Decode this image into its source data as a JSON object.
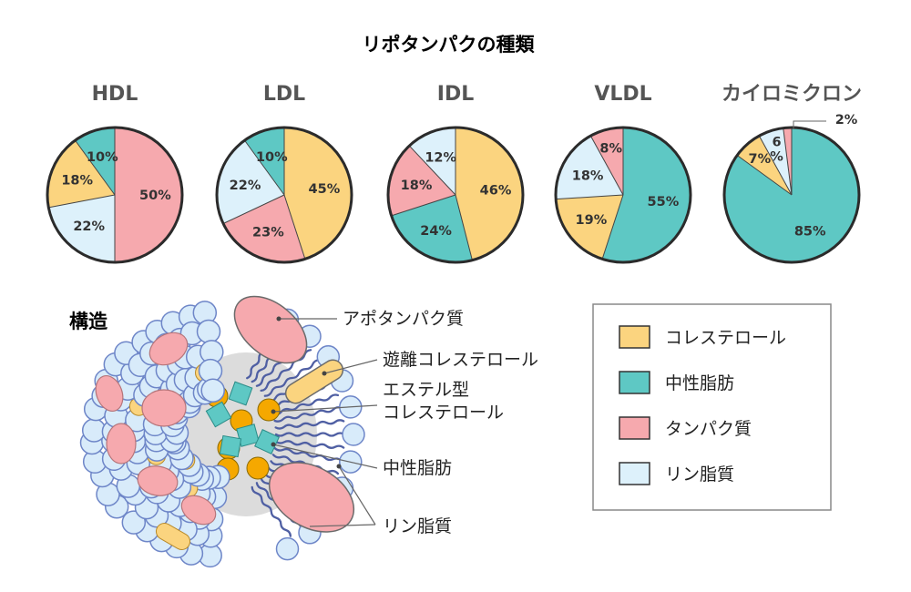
{
  "page_title": "リポタンパクの種類",
  "colors": {
    "cholesterol": "#fbd47f",
    "triglyceride": "#5ec8c4",
    "protein": "#f6a9ae",
    "phospholipid": "#ddf1fb",
    "outline": "#2b2b2b",
    "core_sphere": "#f5a800",
    "sphere_blue": "#d8ebfa",
    "sphere_stroke": "#6e86c8",
    "tail": "#4f5fa3"
  },
  "chart_data": [
    {
      "type": "pie",
      "title": "HDL",
      "categories": [
        "タンパク質",
        "リン脂質",
        "コレステロール",
        "中性脂肪"
      ],
      "values": [
        50,
        22,
        18,
        10
      ],
      "labels": [
        "50%",
        "22%",
        "18%",
        "10%"
      ],
      "color_keys": [
        "protein",
        "phospholipid",
        "cholesterol",
        "triglyceride"
      ]
    },
    {
      "type": "pie",
      "title": "LDL",
      "categories": [
        "コレステロール",
        "タンパク質",
        "リン脂質",
        "中性脂肪"
      ],
      "values": [
        45,
        23,
        22,
        10
      ],
      "labels": [
        "45%",
        "23%",
        "22%",
        "10%"
      ],
      "color_keys": [
        "cholesterol",
        "protein",
        "phospholipid",
        "triglyceride"
      ]
    },
    {
      "type": "pie",
      "title": "IDL",
      "categories": [
        "コレステロール",
        "中性脂肪",
        "タンパク質",
        "リン脂質"
      ],
      "values": [
        46,
        24,
        18,
        12
      ],
      "labels": [
        "46%",
        "24%",
        "18%",
        "12%"
      ],
      "color_keys": [
        "cholesterol",
        "triglyceride",
        "protein",
        "phospholipid"
      ]
    },
    {
      "type": "pie",
      "title": "VLDL",
      "categories": [
        "中性脂肪",
        "コレステロール",
        "リン脂質",
        "タンパク質"
      ],
      "values": [
        55,
        19,
        18,
        8
      ],
      "labels": [
        "55%",
        "19%",
        "18%",
        "8%"
      ],
      "color_keys": [
        "triglyceride",
        "cholesterol",
        "phospholipid",
        "protein"
      ]
    },
    {
      "type": "pie",
      "title": "カイロミクロン",
      "categories": [
        "中性脂肪",
        "コレステロール",
        "リン脂質",
        "タンパク質"
      ],
      "values": [
        85,
        7,
        6,
        2
      ],
      "labels": [
        "85%",
        "7%",
        "6\n%",
        "2%"
      ],
      "color_keys": [
        "triglyceride",
        "cholesterol",
        "phospholipid",
        "protein"
      ]
    }
  ],
  "structure": {
    "heading": "構造",
    "callouts": [
      "アポタンパク質",
      "遊離コレステロール",
      "エステル型\nコレステロール",
      "中性脂肪",
      "リン脂質"
    ]
  },
  "legend": {
    "items": [
      {
        "label": "コレステロール",
        "color_key": "cholesterol"
      },
      {
        "label": "中性脂肪",
        "color_key": "triglyceride"
      },
      {
        "label": "タンパク質",
        "color_key": "protein"
      },
      {
        "label": "リン脂質",
        "color_key": "phospholipid"
      }
    ]
  }
}
